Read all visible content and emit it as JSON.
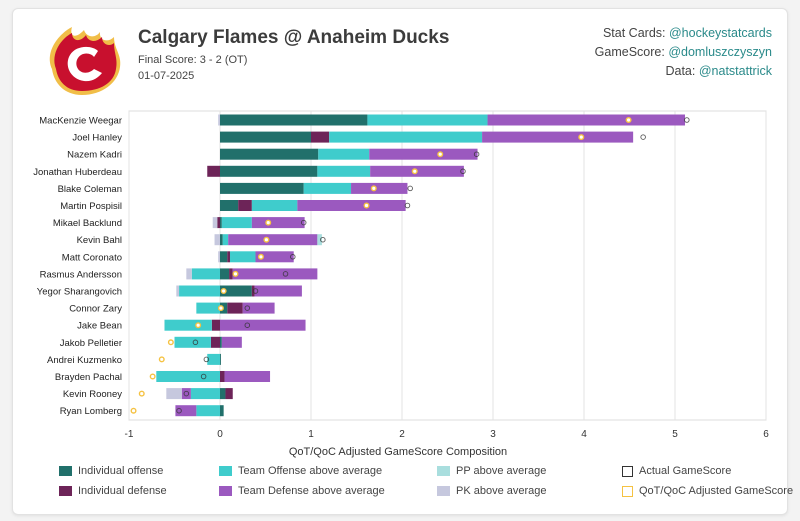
{
  "header": {
    "title": "Calgary Flames @ Anaheim Ducks",
    "final_score": "Final Score: 3 - 2 (OT)",
    "date": "01-07-2025",
    "credits": [
      {
        "label": "Stat Cards:",
        "handle": "@hockeystatcards"
      },
      {
        "label": "GameScore:",
        "handle": "@domluszczyszyn"
      },
      {
        "label": "Data:",
        "handle": "@natstattrick"
      }
    ]
  },
  "colors": {
    "ind_off": "#21706b",
    "ind_def": "#6d2458",
    "team_off": "#3fcccc",
    "team_def": "#9b59bf",
    "pp": "#a9dede",
    "pk": "#c6c8de",
    "actual": "#333333",
    "adjusted": "#f5c242",
    "logo_red": "#c8102e",
    "logo_gold": "#f1be48"
  },
  "chart_data": {
    "type": "bar",
    "orientation": "horizontal-stacked",
    "xlabel": "QoT/QoC Adjusted GameScore Composition",
    "xlim": [
      -1,
      6
    ],
    "xticks": [
      -1,
      0,
      1,
      2,
      3,
      4,
      5,
      6
    ],
    "grid": true,
    "legend_position": "bottom",
    "categories": [
      "MacKenzie Weegar",
      "Joel Hanley",
      "Nazem Kadri",
      "Jonathan Huberdeau",
      "Blake Coleman",
      "Martin Pospisil",
      "Mikael Backlund",
      "Kevin Bahl",
      "Matt Coronato",
      "Rasmus Andersson",
      "Yegor Sharangovich",
      "Connor Zary",
      "Jake Bean",
      "Jakob Pelletier",
      "Andrei Kuzmenko",
      "Brayden Pachal",
      "Kevin Rooney",
      "Ryan Lomberg"
    ],
    "series": [
      {
        "name": "Individual offense",
        "key": "ind_off",
        "values": [
          1.62,
          1.0,
          1.08,
          1.07,
          0.92,
          0.2,
          0.02,
          0.03,
          0.08,
          0.1,
          0.35,
          0.08,
          0.0,
          0.02,
          0.01,
          0.0,
          0.06,
          0.04
        ]
      },
      {
        "name": "Individual defense",
        "key": "ind_def",
        "values": [
          0.0,
          0.2,
          0.0,
          -0.14,
          0.0,
          0.15,
          -0.03,
          0.0,
          0.03,
          0.04,
          0.03,
          0.17,
          -0.09,
          -0.1,
          0.0,
          0.05,
          0.08,
          0.0
        ]
      },
      {
        "name": "Team Offense above average",
        "key": "team_off",
        "values": [
          1.32,
          1.68,
          0.56,
          0.58,
          0.52,
          0.5,
          0.33,
          0.06,
          0.28,
          -0.31,
          -0.45,
          -0.26,
          -0.52,
          -0.4,
          -0.14,
          -0.7,
          -0.32,
          -0.26
        ]
      },
      {
        "name": "Team Defense above average",
        "key": "team_def",
        "values": [
          2.17,
          1.66,
          1.19,
          1.03,
          0.62,
          1.19,
          0.58,
          0.98,
          0.42,
          0.93,
          0.52,
          0.35,
          0.94,
          0.22,
          0.0,
          0.5,
          -0.1,
          -0.23
        ]
      },
      {
        "name": "PP above average",
        "key": "pp",
        "values": [
          0.0,
          0.0,
          0.0,
          0.0,
          0.0,
          0.0,
          0.0,
          0.05,
          0.0,
          0.0,
          0.0,
          0.0,
          0.0,
          0.0,
          0.0,
          0.0,
          0.0,
          0.0
        ]
      },
      {
        "name": "PK above average",
        "key": "pk",
        "values": [
          -0.02,
          0.0,
          0.0,
          0.0,
          0.0,
          0.0,
          -0.05,
          -0.06,
          -0.02,
          -0.06,
          -0.03,
          0.0,
          0.0,
          0.0,
          0.0,
          0.0,
          -0.17,
          0.0
        ]
      }
    ],
    "actual_gamescore": [
      5.13,
      4.65,
      2.82,
      2.67,
      2.09,
      2.06,
      0.92,
      1.13,
      0.8,
      0.72,
      0.39,
      0.3,
      0.3,
      -0.27,
      -0.15,
      -0.18,
      -0.37,
      -0.45
    ],
    "adjusted_gamescore": [
      4.49,
      3.97,
      2.42,
      2.14,
      1.69,
      1.61,
      0.53,
      0.51,
      0.45,
      0.17,
      0.04,
      0.01,
      -0.24,
      -0.54,
      -0.64,
      -0.74,
      -0.86,
      -0.95
    ],
    "legend": [
      {
        "label": "Individual offense",
        "key": "ind_off",
        "shape": "fill"
      },
      {
        "label": "Team Offense above average",
        "key": "team_off",
        "shape": "fill"
      },
      {
        "label": "PP above average",
        "key": "pp",
        "shape": "fill"
      },
      {
        "label": "Actual GameScore",
        "key": "actual",
        "shape": "outline"
      },
      {
        "label": "Individual defense",
        "key": "ind_def",
        "shape": "fill"
      },
      {
        "label": "Team Defense above average",
        "key": "team_def",
        "shape": "fill"
      },
      {
        "label": "PK above average",
        "key": "pk",
        "shape": "fill"
      },
      {
        "label": "QoT/QoC Adjusted GameScore",
        "key": "adjusted",
        "shape": "outline"
      }
    ]
  }
}
